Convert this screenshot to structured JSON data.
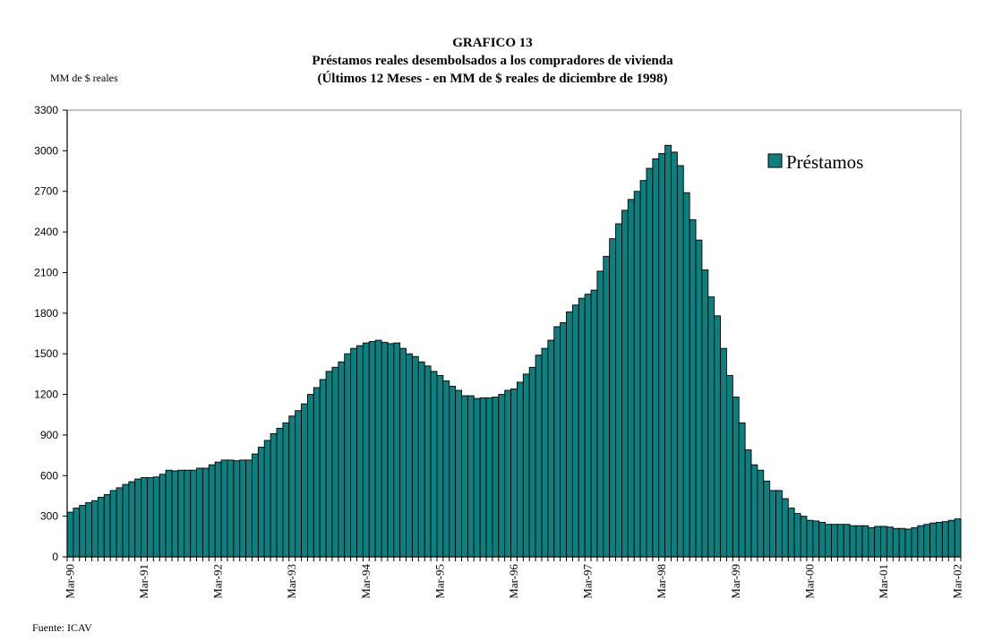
{
  "chart_data": {
    "type": "bar",
    "title": "GRAFICO 13",
    "subtitle": "Préstamos reales desembolsados a los compradores de vivienda",
    "subtitle2": "(Últimos 12 Meses - en MM de $ reales de diciembre de 1998)",
    "ylabel": "MM de $ reales",
    "xlabel": "",
    "ylim": [
      0,
      3300
    ],
    "yticks": [
      0,
      300,
      600,
      900,
      1200,
      1500,
      1800,
      2100,
      2400,
      2700,
      3000,
      3300
    ],
    "xtick_labels": [
      "Mar-90",
      "Mar-91",
      "Mar-92",
      "Mar-93",
      "Mar-94",
      "Mar-95",
      "Mar-96",
      "Mar-97",
      "Mar-98",
      "Mar-99",
      "Mar-00",
      "Mar-01",
      "Mar-02"
    ],
    "x_start": "Mar-90",
    "x_end": "Mar-02",
    "frequency": "monthly",
    "grid": false,
    "legend_position": "top-right",
    "series": [
      {
        "name": "Préstamos",
        "color": "#0e7f7f",
        "values": [
          330,
          360,
          380,
          400,
          415,
          440,
          460,
          490,
          510,
          535,
          555,
          575,
          585,
          585,
          590,
          610,
          640,
          635,
          640,
          640,
          640,
          655,
          655,
          680,
          700,
          715,
          715,
          710,
          715,
          715,
          760,
          810,
          860,
          910,
          950,
          990,
          1040,
          1080,
          1130,
          1200,
          1250,
          1310,
          1370,
          1400,
          1440,
          1500,
          1540,
          1560,
          1580,
          1590,
          1600,
          1585,
          1575,
          1580,
          1540,
          1500,
          1480,
          1440,
          1410,
          1370,
          1340,
          1300,
          1260,
          1230,
          1190,
          1190,
          1170,
          1175,
          1175,
          1180,
          1200,
          1230,
          1240,
          1290,
          1350,
          1400,
          1490,
          1540,
          1600,
          1700,
          1730,
          1810,
          1860,
          1910,
          1940,
          1970,
          2110,
          2220,
          2350,
          2460,
          2560,
          2640,
          2700,
          2780,
          2870,
          2940,
          2980,
          3040,
          2990,
          2890,
          2690,
          2490,
          2340,
          2120,
          1920,
          1780,
          1540,
          1340,
          1180,
          990,
          790,
          680,
          640,
          560,
          490,
          490,
          430,
          360,
          320,
          300,
          270,
          265,
          255,
          240,
          240,
          240,
          240,
          230,
          230,
          230,
          215,
          225,
          225,
          220,
          210,
          210,
          205,
          215,
          230,
          240,
          250,
          255,
          260,
          270,
          280
        ]
      }
    ]
  },
  "page": {
    "y_unit_label": "MM de $ reales",
    "source": "Fuente: ICAV"
  }
}
